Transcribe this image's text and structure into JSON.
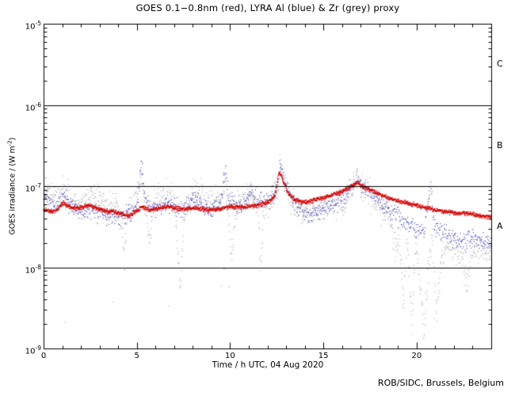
{
  "chart_data": {
    "type": "scatter",
    "title": "GOES 0.1−0.8nm (red), LYRA Al (blue) & Zr (grey) proxy",
    "xlabel": "Time / h UTC, 04 Aug 2020",
    "ylabel_segments": [
      {
        "text": "GOES irradiance / (W m"
      },
      {
        "text": "-2",
        "sup": true
      },
      {
        "text": ")"
      }
    ],
    "credit": "ROB/SIDC, Brussels, Belgium",
    "x_range": [
      0,
      24
    ],
    "x_major_ticks": [
      0,
      5,
      10,
      15,
      20
    ],
    "x_major_step": 5,
    "x_minor_step": 1,
    "y_log_range": [
      -9,
      -5
    ],
    "y_tick_exponents": [
      -5,
      -6,
      -7,
      -8,
      -9
    ],
    "hlines_flux": [
      1e-06,
      1e-07,
      1e-08
    ],
    "flare_classes": [
      {
        "label": "C",
        "log_center": -5.5
      },
      {
        "label": "B",
        "log_center": -6.5
      },
      {
        "label": "A",
        "log_center": -7.5
      }
    ],
    "axis_color": "#000000",
    "background": "#ffffff",
    "noise_seed": 20200804,
    "series": [
      {
        "name": "GOES 0.1-0.8nm",
        "color": "#d40000",
        "dot": 1.4,
        "step": 0.013,
        "noise_dex": 0.013,
        "outlier_prob": 0,
        "outlier_dex": 0,
        "anchors": [
          [
            0,
            5.2e-08
          ],
          [
            0.4,
            4.8e-08
          ],
          [
            0.8,
            5.2e-08
          ],
          [
            1.0,
            6.2e-08
          ],
          [
            1.3,
            5.7e-08
          ],
          [
            1.7,
            5.3e-08
          ],
          [
            2.1,
            5.5e-08
          ],
          [
            2.5,
            5.8e-08
          ],
          [
            2.9,
            5.2e-08
          ],
          [
            3.3,
            5e-08
          ],
          [
            3.8,
            4.8e-08
          ],
          [
            4.2,
            4.5e-08
          ],
          [
            4.6,
            4.3e-08
          ],
          [
            5.0,
            5e-08
          ],
          [
            5.3,
            5.5e-08
          ],
          [
            5.7,
            5.1e-08
          ],
          [
            6.1,
            5.3e-08
          ],
          [
            6.6,
            5.6e-08
          ],
          [
            7.0,
            5.4e-08
          ],
          [
            7.5,
            5.2e-08
          ],
          [
            8.0,
            5.4e-08
          ],
          [
            8.5,
            5.2e-08
          ],
          [
            9.0,
            5.1e-08
          ],
          [
            9.5,
            5.3e-08
          ],
          [
            10.0,
            5.6e-08
          ],
          [
            10.5,
            5.5e-08
          ],
          [
            11.0,
            5.6e-08
          ],
          [
            11.5,
            5.9e-08
          ],
          [
            12.0,
            6.3e-08
          ],
          [
            12.4,
            7.5e-08
          ],
          [
            12.65,
            1.5e-07
          ],
          [
            12.85,
            1.15e-07
          ],
          [
            13.1,
            8.3e-08
          ],
          [
            13.4,
            7e-08
          ],
          [
            13.8,
            6.4e-08
          ],
          [
            14.2,
            6.4e-08
          ],
          [
            14.6,
            6.8e-08
          ],
          [
            15.0,
            7.2e-08
          ],
          [
            15.5,
            7.8e-08
          ],
          [
            16.0,
            8.6e-08
          ],
          [
            16.4,
            9.6e-08
          ],
          [
            16.8,
            1.1e-07
          ],
          [
            17.1,
            1e-07
          ],
          [
            17.5,
            9e-08
          ],
          [
            17.9,
            8.1e-08
          ],
          [
            18.3,
            7.5e-08
          ],
          [
            18.7,
            6.9e-08
          ],
          [
            19.1,
            6.5e-08
          ],
          [
            19.6,
            6.1e-08
          ],
          [
            20.0,
            5.8e-08
          ],
          [
            20.5,
            5.4e-08
          ],
          [
            21.0,
            5.1e-08
          ],
          [
            21.5,
            4.9e-08
          ],
          [
            22.0,
            4.7e-08
          ],
          [
            22.5,
            4.6e-08
          ],
          [
            23.0,
            4.5e-08
          ],
          [
            23.5,
            4.3e-08
          ],
          [
            24.0,
            4.1e-08
          ]
        ]
      },
      {
        "name": "LYRA Al proxy",
        "color": "#3a3ab4",
        "dot": 1.1,
        "step": 0.02,
        "noise_dex": 0.055,
        "outlier_prob": 0.004,
        "outlier_dex": 0.8,
        "anchors": [
          [
            0,
            7.5e-08
          ],
          [
            0.3,
            6.4e-08
          ],
          [
            0.6,
            5.6e-08
          ],
          [
            0.9,
            7e-08
          ],
          [
            1.1,
            8.3e-08
          ],
          [
            1.4,
            6e-08
          ],
          [
            1.8,
            5e-08
          ],
          [
            2.2,
            4.6e-08
          ],
          [
            2.6,
            5.2e-08
          ],
          [
            3.0,
            4.6e-08
          ],
          [
            3.4,
            4.2e-08
          ],
          [
            3.8,
            4.6e-08
          ],
          [
            4.2,
            4.2e-08
          ],
          [
            4.6,
            4.6e-08
          ],
          [
            5.0,
            5.4e-08
          ],
          [
            5.25,
            1.8e-07
          ],
          [
            5.45,
            7e-08
          ],
          [
            5.8,
            5.2e-08
          ],
          [
            6.2,
            5.6e-08
          ],
          [
            6.6,
            6.2e-08
          ],
          [
            7.0,
            5.6e-08
          ],
          [
            7.4,
            5.2e-08
          ],
          [
            7.8,
            5.8e-08
          ],
          [
            8.2,
            7.4e-08
          ],
          [
            8.5,
            5.8e-08
          ],
          [
            9.0,
            5.2e-08
          ],
          [
            9.4,
            6e-08
          ],
          [
            9.75,
            1.45e-07
          ],
          [
            9.95,
            6.4e-08
          ],
          [
            10.3,
            5.6e-08
          ],
          [
            10.7,
            5.8e-08
          ],
          [
            11.1,
            8.4e-08
          ],
          [
            11.4,
            6.2e-08
          ],
          [
            11.8,
            6.4e-08
          ],
          [
            12.2,
            7e-08
          ],
          [
            12.5,
            9e-08
          ],
          [
            12.68,
            1.9e-07
          ],
          [
            12.9,
            1.25e-07
          ],
          [
            13.2,
            7.8e-08
          ],
          [
            13.5,
            6e-08
          ],
          [
            13.9,
            5e-08
          ],
          [
            14.3,
            4.6e-08
          ],
          [
            14.7,
            5e-08
          ],
          [
            15.1,
            5.5e-08
          ],
          [
            15.5,
            6e-08
          ],
          [
            15.9,
            6.7e-08
          ],
          [
            16.3,
            8e-08
          ],
          [
            16.6,
            1.05e-07
          ],
          [
            16.85,
            1.2e-07
          ],
          [
            17.1,
            1.07e-07
          ],
          [
            17.5,
            8.5e-08
          ],
          [
            18.0,
            6.5e-08
          ],
          [
            18.5,
            5.2e-08
          ],
          [
            19.0,
            4.2e-08
          ],
          [
            19.5,
            3.6e-08
          ],
          [
            20.0,
            3e-08
          ],
          [
            20.4,
            2.6e-08
          ],
          [
            20.75,
            1.05e-07
          ],
          [
            20.95,
            3.2e-08
          ],
          [
            21.3,
            2.8e-08
          ],
          [
            21.7,
            2.4e-08
          ],
          [
            22.1,
            2.2e-08
          ],
          [
            22.5,
            2.1e-08
          ],
          [
            23.0,
            2.3e-08
          ],
          [
            23.5,
            2.1e-08
          ],
          [
            24.0,
            2e-08
          ]
        ]
      },
      {
        "name": "LYRA Zr proxy",
        "color": "#a6a6a6",
        "dot": 1.1,
        "step": 0.018,
        "noise_dex": 0.085,
        "outlier_prob": 0.008,
        "outlier_dex": 1.4,
        "anchors": [
          [
            0,
            8.5e-08
          ],
          [
            0.4,
            7.5e-08
          ],
          [
            0.8,
            7e-08
          ],
          [
            1.1,
            9e-08
          ],
          [
            1.5,
            6.6e-08
          ],
          [
            1.9,
            6e-08
          ],
          [
            2.3,
            6.8e-08
          ],
          [
            2.7,
            7.2e-08
          ],
          [
            3.1,
            6.2e-08
          ],
          [
            3.5,
            5.6e-08
          ],
          [
            3.9,
            6.2e-08
          ],
          [
            4.2,
            3e-08
          ],
          [
            4.35,
            1.2e-08
          ],
          [
            4.5,
            4.5e-08
          ],
          [
            4.9,
            6.8e-08
          ],
          [
            5.25,
            1.5e-07
          ],
          [
            5.45,
            5e-08
          ],
          [
            5.7,
            2e-08
          ],
          [
            5.9,
            6.5e-08
          ],
          [
            6.3,
            7.5e-08
          ],
          [
            6.7,
            8e-08
          ],
          [
            7.0,
            6.8e-08
          ],
          [
            7.2,
            1.6e-08
          ],
          [
            7.35,
            4.5e-09
          ],
          [
            7.5,
            4e-08
          ],
          [
            7.9,
            7.2e-08
          ],
          [
            8.3,
            8.2e-08
          ],
          [
            8.7,
            7e-08
          ],
          [
            9.1,
            6e-08
          ],
          [
            9.5,
            7e-08
          ],
          [
            9.75,
            1.3e-07
          ],
          [
            9.9,
            4e-08
          ],
          [
            10.1,
            1.5e-08
          ],
          [
            10.3,
            5.5e-08
          ],
          [
            10.7,
            6.5e-08
          ],
          [
            11.1,
            8e-08
          ],
          [
            11.5,
            5.5e-08
          ],
          [
            11.65,
            8e-09
          ],
          [
            11.8,
            5.5e-08
          ],
          [
            12.2,
            7e-08
          ],
          [
            12.5,
            9.5e-08
          ],
          [
            12.68,
            1.7e-07
          ],
          [
            12.9,
            1.1e-07
          ],
          [
            13.2,
            7e-08
          ],
          [
            13.6,
            5.5e-08
          ],
          [
            14.0,
            4.8e-08
          ],
          [
            14.4,
            4.4e-08
          ],
          [
            14.8,
            5e-08
          ],
          [
            15.2,
            5.6e-08
          ],
          [
            15.6,
            6.2e-08
          ],
          [
            16.0,
            7e-08
          ],
          [
            16.4,
            8.5e-08
          ],
          [
            16.75,
            1.12e-07
          ],
          [
            17.0,
            1e-07
          ],
          [
            17.4,
            8e-08
          ],
          [
            17.8,
            6.5e-08
          ],
          [
            18.2,
            5.2e-08
          ],
          [
            18.6,
            4e-08
          ],
          [
            18.9,
            1.2e-08
          ],
          [
            19.1,
            3e-08
          ],
          [
            19.3,
            3e-09
          ],
          [
            19.5,
            2.5e-08
          ],
          [
            19.75,
            1.8e-09
          ],
          [
            19.95,
            2.2e-08
          ],
          [
            20.2,
            6e-09
          ],
          [
            20.4,
            1.5e-09
          ],
          [
            20.6,
            8e-09
          ],
          [
            20.85,
            2.5e-08
          ],
          [
            21.05,
            2.5e-09
          ],
          [
            21.3,
            1.2e-08
          ],
          [
            21.6,
            2e-08
          ],
          [
            22.0,
            1.7e-08
          ],
          [
            22.4,
            1.3e-08
          ],
          [
            22.7,
            6e-09
          ],
          [
            22.9,
            1.6e-08
          ],
          [
            23.3,
            1.8e-08
          ],
          [
            23.7,
            1.6e-08
          ],
          [
            24.0,
            1.5e-08
          ]
        ]
      }
    ]
  }
}
